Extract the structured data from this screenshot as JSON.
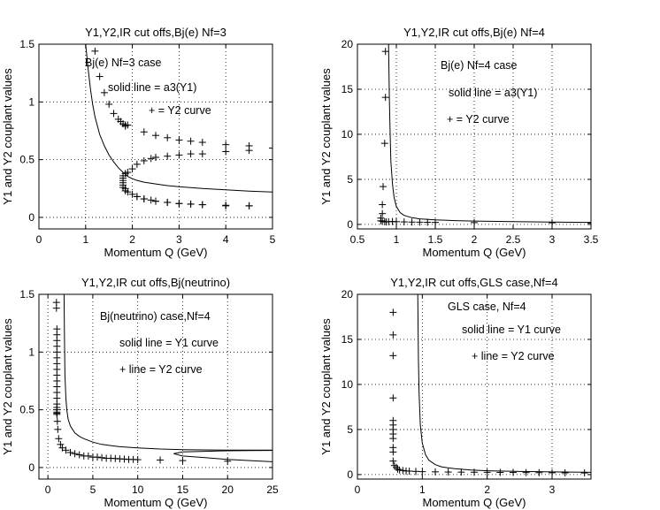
{
  "chart_data": [
    {
      "type": "scatter",
      "id": "p1",
      "title": "Y1,Y2,IR cut offs,Bj(e) Nf=3",
      "xlabel": "Momentum Q (GeV)",
      "ylabel": "Y1 and Y2 couplant values",
      "xlim": [
        0,
        5
      ],
      "ylim": [
        -0.1,
        1.5
      ],
      "xticks": [
        0,
        1,
        2,
        3,
        4,
        5
      ],
      "xtick_labels": [
        "0",
        "1",
        "2",
        "3",
        "4",
        "5"
      ],
      "yticks": [
        0,
        0.5,
        1,
        1.5
      ],
      "ytick_labels": [
        "0",
        "0.5",
        "1",
        "1.5"
      ],
      "grid": true,
      "annotations": [
        "Bj(e) Nf=3 case",
        "solid line = a3(Y1)",
        "+ = Y2 curve"
      ],
      "series": [
        {
          "name": "Y1 (solid line)",
          "style": "line",
          "x": [
            1.0,
            1.05,
            1.1,
            1.15,
            1.2,
            1.3,
            1.4,
            1.5,
            1.6,
            1.7,
            1.75,
            1.8,
            1.85,
            1.9,
            1.95,
            2.0,
            2.1,
            2.25,
            2.5,
            2.75,
            3.0,
            3.5,
            4.0,
            4.5,
            5.0
          ],
          "y": [
            1.5,
            1.3,
            1.12,
            0.98,
            0.87,
            0.72,
            0.62,
            0.54,
            0.48,
            0.43,
            0.41,
            0.39,
            0.375,
            0.355,
            0.345,
            0.335,
            0.32,
            0.305,
            0.29,
            0.275,
            0.265,
            0.25,
            0.238,
            0.228,
            0.22
          ]
        },
        {
          "name": "Y2 (+ markers)",
          "style": "plus",
          "x": [
            1.2,
            1.3,
            1.4,
            1.5,
            1.6,
            1.7,
            1.75,
            1.8,
            1.85,
            1.9,
            1.85,
            1.8,
            1.8,
            1.8,
            1.85,
            1.85,
            1.9,
            1.8,
            1.8,
            1.8,
            1.85,
            1.9,
            2.0,
            2.1,
            2.25,
            2.4,
            2.5,
            2.75,
            3.0,
            3.25,
            3.5,
            4.0,
            4.5,
            5.0,
            2.0,
            2.1,
            2.25,
            2.4,
            2.5,
            2.75,
            3.0,
            3.25,
            3.5,
            4.0,
            4.5,
            4.5,
            4.0,
            3.5,
            3.25,
            3.0,
            2.75,
            2.5,
            2.25,
            2.1
          ],
          "y": [
            1.44,
            1.22,
            1.08,
            0.98,
            0.9,
            0.85,
            0.83,
            0.81,
            0.8,
            0.8,
            0.79,
            0.3,
            0.28,
            0.26,
            0.25,
            0.23,
            0.22,
            0.32,
            0.34,
            0.36,
            0.38,
            0.39,
            0.42,
            0.46,
            0.49,
            0.51,
            0.52,
            0.53,
            0.54,
            0.55,
            0.55,
            0.57,
            0.58,
            0.6,
            0.2,
            0.18,
            0.16,
            0.15,
            0.14,
            0.13,
            0.12,
            0.115,
            0.11,
            0.105,
            0.1,
            0.1,
            0.1,
            0.11,
            0.115,
            0.12,
            0.13,
            0.14,
            0.16,
            0.18
          ]
        },
        {
          "name": "Y2 (+ markers, upper branch)",
          "style": "plus",
          "x": [
            2.25,
            2.5,
            2.75,
            3.0,
            3.25,
            3.5,
            4.0,
            4.5
          ],
          "y": [
            0.74,
            0.71,
            0.69,
            0.67,
            0.66,
            0.65,
            0.63,
            0.62
          ]
        }
      ]
    },
    {
      "type": "scatter",
      "id": "p2",
      "title": "Y1,Y2,IR cut offs,Bj(e) Nf=4",
      "xlabel": "Momentum Q (GeV)",
      "ylabel": "Y1 and Y2 couplant values",
      "xlim": [
        0.5,
        3.5
      ],
      "ylim": [
        -0.5,
        20
      ],
      "xticks": [
        0.5,
        1,
        1.5,
        2,
        2.5,
        3,
        3.5
      ],
      "xtick_labels": [
        "0.5",
        "1",
        "1.5",
        "2",
        "2.5",
        "3",
        "3.5"
      ],
      "yticks": [
        0,
        5,
        10,
        15,
        20
      ],
      "ytick_labels": [
        "0",
        "5",
        "10",
        "15",
        "20"
      ],
      "grid": true,
      "annotations": [
        "Bj(e) Nf=4 case",
        "solid line = a3(Y1)",
        "+ = Y2 curve"
      ],
      "series": [
        {
          "name": "Y1 (solid line)",
          "style": "line",
          "x": [
            0.9,
            0.91,
            0.92,
            0.93,
            0.95,
            0.97,
            1.0,
            1.05,
            1.1,
            1.2,
            1.3,
            1.5,
            1.75,
            2.0,
            2.5,
            3.0,
            3.5
          ],
          "y": [
            20,
            14,
            10,
            7,
            4.5,
            3.0,
            2.0,
            1.3,
            1.0,
            0.75,
            0.62,
            0.5,
            0.42,
            0.37,
            0.3,
            0.26,
            0.23
          ]
        },
        {
          "name": "Y2 (+ markers)",
          "style": "plus",
          "x": [
            0.86,
            0.86,
            0.85,
            0.83,
            0.82,
            0.82,
            0.8,
            0.8,
            0.82,
            0.85,
            0.87,
            0.9,
            0.95,
            1.0,
            1.1,
            1.2,
            1.3,
            1.4,
            1.5,
            2.0,
            3.0,
            3.5
          ],
          "y": [
            19.2,
            14.1,
            9.0,
            4.2,
            2.2,
            1.2,
            0.7,
            0.4,
            0.35,
            0.3,
            0.28,
            0.3,
            0.32,
            0.3,
            0.28,
            0.26,
            0.25,
            0.24,
            0.22,
            0.2,
            0.18,
            0.15
          ]
        }
      ]
    },
    {
      "type": "scatter",
      "id": "p3",
      "title": "Y1,Y2,IR cut offs,Bj(neutrino)",
      "xlabel": "Momentum Q (GeV)",
      "ylabel": "Y1 and Y2 couplant values",
      "xlim": [
        -1,
        25
      ],
      "ylim": [
        -0.1,
        1.5
      ],
      "xticks": [
        0,
        5,
        10,
        15,
        20,
        25
      ],
      "xtick_labels": [
        "0",
        "5",
        "10",
        "15",
        "20",
        "25"
      ],
      "yticks": [
        0,
        0.5,
        1,
        1.5
      ],
      "ytick_labels": [
        "0",
        "0.5",
        "1",
        "1.5"
      ],
      "grid": true,
      "annotations": [
        "Bj(neutrino) case,Nf=4",
        "solid line = Y1 curve",
        "+ line = Y2 curve"
      ],
      "series": [
        {
          "name": "Y1 (solid line)",
          "style": "line",
          "x": [
            1.8,
            1.85,
            1.9,
            2.0,
            2.1,
            2.25,
            2.5,
            3.0,
            3.5,
            4.0,
            5.0,
            6.0,
            8.0,
            10.0,
            12.5,
            15.0,
            20.0,
            25.0
          ],
          "y": [
            1.5,
            1.1,
            0.8,
            0.6,
            0.5,
            0.42,
            0.36,
            0.3,
            0.27,
            0.25,
            0.22,
            0.2,
            0.18,
            0.17,
            0.16,
            0.155,
            0.15,
            0.15
          ]
        },
        {
          "name": "Y1 (solid line, lower branch)",
          "style": "line",
          "x": [
            14.0,
            15.0,
            17.5,
            20.0,
            22.5,
            25.0
          ],
          "y": [
            0.12,
            0.1,
            0.085,
            0.07,
            0.06,
            0.05
          ]
        },
        {
          "name": "Y1 (solid line, upper return)",
          "style": "line",
          "x": [
            14.0,
            15.0,
            17.5,
            20.0,
            22.5,
            25.0
          ],
          "y": [
            0.12,
            0.135,
            0.14,
            0.145,
            0.147,
            0.148
          ]
        },
        {
          "name": "Y2 (+ markers)",
          "style": "plus",
          "x": [
            0.95,
            0.95,
            1.0,
            1.0,
            1.0,
            1.0,
            1.0,
            1.0,
            1.0,
            1.0,
            1.0,
            1.0,
            1.0,
            1.0,
            1.0,
            1.0,
            1.0,
            1.0,
            1.0,
            1.0,
            1.0,
            1.05,
            1.1,
            1.2,
            1.4,
            1.6,
            2.0,
            2.5,
            3.0,
            3.5,
            4.0,
            4.5,
            5.0,
            5.5,
            6.0,
            6.5,
            7.0,
            7.5,
            8.0,
            8.5,
            9.0,
            9.5,
            10.0,
            12.5,
            15.0,
            20.0
          ],
          "y": [
            1.43,
            1.38,
            1.2,
            1.15,
            1.1,
            1.05,
            1.0,
            0.95,
            0.9,
            0.85,
            0.8,
            0.75,
            0.7,
            0.65,
            0.6,
            0.55,
            0.52,
            0.5,
            0.48,
            0.47,
            0.46,
            0.4,
            0.33,
            0.25,
            0.2,
            0.17,
            0.15,
            0.13,
            0.12,
            0.11,
            0.1,
            0.1,
            0.09,
            0.09,
            0.085,
            0.08,
            0.08,
            0.078,
            0.075,
            0.073,
            0.07,
            0.07,
            0.068,
            0.065,
            0.06,
            0.055
          ]
        }
      ]
    },
    {
      "type": "scatter",
      "id": "p4",
      "title": "Y1,Y2,IR cut offs,GLS case,Nf=4",
      "xlabel": "Momentum Q (GeV)",
      "ylabel": "Y1 and Y2 couplant values",
      "xlim": [
        0,
        3.6
      ],
      "ylim": [
        -0.5,
        20
      ],
      "xticks": [
        0,
        1,
        2,
        3
      ],
      "xtick_labels": [
        "0",
        "1",
        "2",
        "3"
      ],
      "yticks": [
        0,
        5,
        10,
        15,
        20
      ],
      "ytick_labels": [
        "0",
        "5",
        "10",
        "15",
        "20"
      ],
      "grid": true,
      "annotations": [
        "GLS case, Nf=4",
        "solid line = Y1 curve",
        "+ line = Y2 curve"
      ],
      "series": [
        {
          "name": "Y1 (solid line)",
          "style": "line",
          "x": [
            0.93,
            0.94,
            0.95,
            0.97,
            1.0,
            1.05,
            1.1,
            1.2,
            1.3,
            1.5,
            1.75,
            2.0,
            2.5,
            3.0,
            3.5,
            3.6
          ],
          "y": [
            20,
            13,
            9,
            5.5,
            3.5,
            2.2,
            1.6,
            1.1,
            0.85,
            0.65,
            0.5,
            0.42,
            0.34,
            0.29,
            0.26,
            0.25
          ]
        },
        {
          "name": "Y2 (+ markers)",
          "style": "plus",
          "x": [
            0.55,
            0.55,
            0.55,
            0.55,
            0.55,
            0.55,
            0.55,
            0.55,
            0.55,
            0.55,
            0.55,
            0.55,
            0.57,
            0.6,
            0.62,
            0.65,
            0.7,
            0.75,
            0.8,
            0.9,
            1.0,
            1.2,
            1.4,
            1.6,
            1.8,
            2.0,
            2.2,
            2.4,
            2.6,
            2.8,
            3.0,
            3.2,
            3.5
          ],
          "y": [
            18.0,
            15.5,
            13.2,
            8.5,
            6.0,
            5.5,
            5.0,
            4.5,
            4.0,
            3.0,
            2.5,
            1.5,
            1.0,
            0.8,
            0.6,
            0.5,
            0.45,
            0.4,
            0.38,
            0.35,
            0.32,
            0.3,
            0.28,
            0.27,
            0.26,
            0.25,
            0.24,
            0.23,
            0.22,
            0.21,
            0.2,
            0.19,
            0.18
          ]
        }
      ]
    }
  ]
}
